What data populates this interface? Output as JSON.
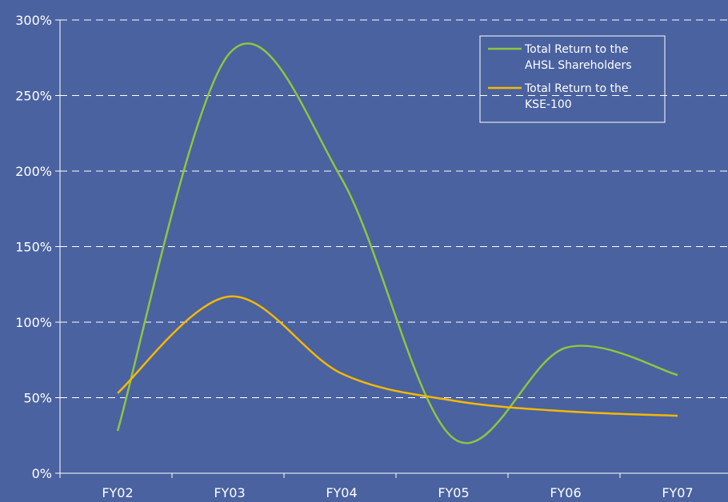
{
  "chart_data": {
    "type": "line",
    "categories": [
      "FY02",
      "FY03",
      "FY04",
      "FY05",
      "FY06",
      "FY07"
    ],
    "ylim": [
      0,
      300
    ],
    "y_ticks": [
      "0%",
      "50%",
      "100%",
      "150%",
      "200%",
      "250%",
      "300%"
    ],
    "y_tick_values": [
      0,
      50,
      100,
      150,
      200,
      250,
      300
    ],
    "grid": "horizontal dashed",
    "legend_position": "top-right",
    "series": [
      {
        "name": "Total Return to the AHSL Shareholders",
        "name_lines": [
          "Total Return to the",
          "AHSL Shareholders"
        ],
        "color": "#8dc63f",
        "values": [
          28,
          278,
          195,
          23,
          83,
          65
        ]
      },
      {
        "name": "Total Return to the KSE-100",
        "name_lines": [
          "Total Return to the",
          "KSE-100"
        ],
        "color": "#f5b800",
        "values": [
          53,
          117,
          66,
          48,
          41,
          38
        ]
      }
    ]
  }
}
